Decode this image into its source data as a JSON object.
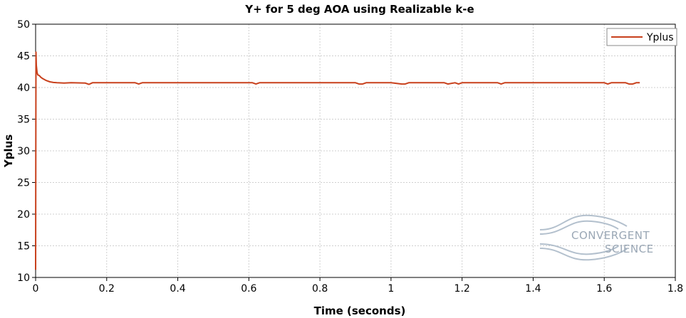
{
  "chart_data": {
    "type": "line",
    "title": "Y+ for 5 deg AOA using Realizable k-e",
    "xlabel": "Time (seconds)",
    "ylabel": "Yplus",
    "xlim": [
      0,
      1.8
    ],
    "ylim": [
      10,
      50
    ],
    "x_ticks": [
      "0",
      "0.2",
      "0.4",
      "0.6",
      "0.8",
      "1",
      "1.2",
      "1.4",
      "1.6",
      "1.8"
    ],
    "y_ticks": [
      "10",
      "15",
      "20",
      "25",
      "30",
      "35",
      "40",
      "45",
      "50"
    ],
    "grid": true,
    "legend_position": "top-right",
    "series": [
      {
        "name": "Yplus",
        "color": "#c8401c",
        "x": [
          0,
          0.001,
          0.002,
          0.004,
          0.006,
          0.01,
          0.015,
          0.02,
          0.03,
          0.04,
          0.05,
          0.06,
          0.08,
          0.1,
          0.14,
          0.15,
          0.16,
          0.2,
          0.28,
          0.29,
          0.3,
          0.4,
          0.5,
          0.61,
          0.62,
          0.63,
          0.7,
          0.8,
          0.9,
          0.91,
          0.92,
          0.93,
          1.0,
          1.03,
          1.04,
          1.05,
          1.1,
          1.15,
          1.16,
          1.18,
          1.19,
          1.2,
          1.3,
          1.31,
          1.32,
          1.4,
          1.5,
          1.6,
          1.61,
          1.62,
          1.66,
          1.67,
          1.68,
          1.69,
          1.7
        ],
        "y": [
          11.2,
          45.6,
          43.5,
          42.4,
          42.0,
          41.9,
          41.6,
          41.4,
          41.1,
          40.9,
          40.8,
          40.75,
          40.7,
          40.75,
          40.7,
          40.5,
          40.75,
          40.75,
          40.75,
          40.55,
          40.75,
          40.75,
          40.75,
          40.75,
          40.55,
          40.75,
          40.75,
          40.75,
          40.75,
          40.55,
          40.55,
          40.75,
          40.75,
          40.55,
          40.55,
          40.75,
          40.75,
          40.75,
          40.55,
          40.75,
          40.55,
          40.75,
          40.75,
          40.55,
          40.75,
          40.75,
          40.75,
          40.75,
          40.55,
          40.75,
          40.75,
          40.55,
          40.55,
          40.75,
          40.75
        ]
      }
    ]
  },
  "watermark": {
    "line1": "CONVERGENT",
    "line2": "SCIENCE"
  },
  "colors": {
    "series": "#c8401c",
    "grid": "#cfcfcf",
    "watermark": "#9aa7b5"
  }
}
